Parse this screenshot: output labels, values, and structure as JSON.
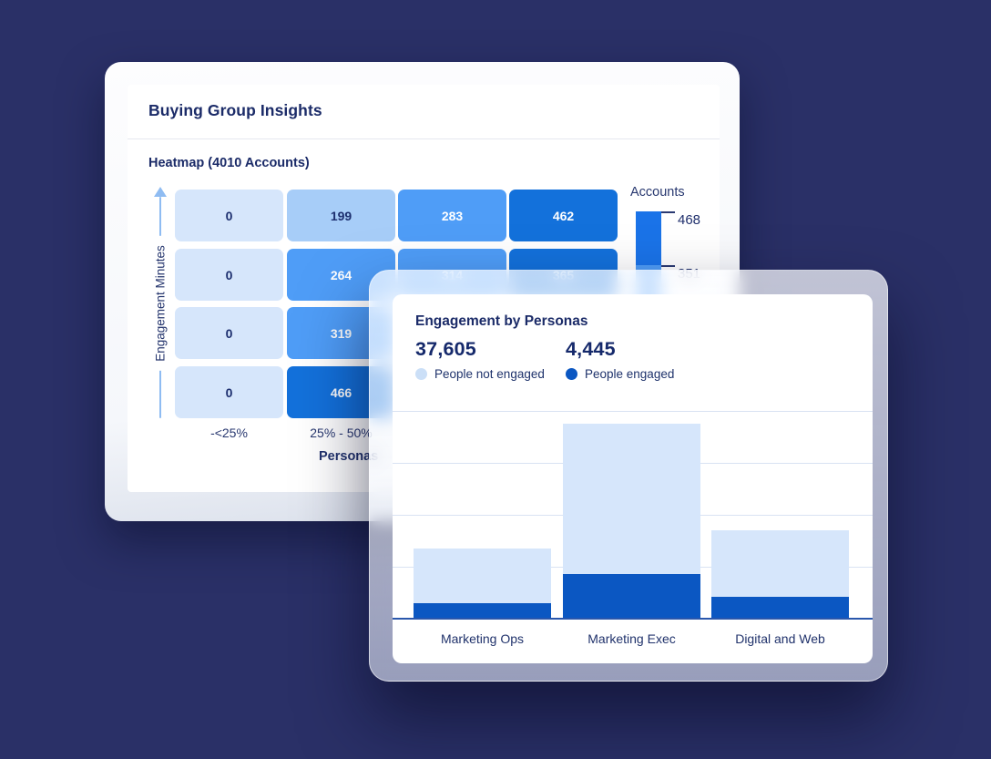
{
  "background_color": "#2A3067",
  "back_card": {
    "title": "Buying Group Insights",
    "heatmap_title": "Heatmap (4010 Accounts)",
    "y_axis_label": "Engagement Minutes",
    "x_axis_label": "Personas",
    "x_tick_labels": [
      "-<25%",
      "25% - 50%"
    ],
    "legend_title": "Accounts"
  },
  "front_card": {
    "title": "Engagement by Personas",
    "stats": [
      {
        "value": "37,605",
        "label": "People not engaged",
        "dot_color": "#CBDFF7"
      },
      {
        "value": "4,445",
        "label": "People engaged",
        "dot_color": "#0B57C2"
      }
    ]
  },
  "palette": {
    "l0": {
      "bg": "#D6E6FB",
      "text": "#1C2E6E"
    },
    "l1": {
      "bg": "#A7CDF8",
      "text": "#1C2E6E"
    },
    "l2": {
      "bg": "#4F9DF7",
      "text": "#FFFFFF"
    },
    "l3": {
      "bg": "#1371DB",
      "text": "#FFFFFF"
    }
  },
  "chart_data": [
    {
      "type": "heatmap",
      "title": "Heatmap (4010 Accounts)",
      "xlabel": "Personas",
      "ylabel": "Engagement Minutes",
      "x_tick_labels_visible": [
        "-<25%",
        "25% - 50%"
      ],
      "rows_top_to_bottom": [
        [
          {
            "value": "0",
            "level": "l0"
          },
          {
            "value": "199",
            "level": "l1"
          },
          {
            "value": "283",
            "level": "l2"
          },
          {
            "value": "462",
            "level": "l3"
          }
        ],
        [
          {
            "value": "0",
            "level": "l0"
          },
          {
            "value": "264",
            "level": "l2"
          },
          {
            "value": "314",
            "level": "l2"
          },
          {
            "value": "365",
            "level": "l3"
          }
        ],
        [
          {
            "value": "0",
            "level": "l0"
          },
          {
            "value": "319",
            "level": "l2"
          }
        ],
        [
          {
            "value": "0",
            "level": "l0"
          },
          {
            "value": "466",
            "level": "l3"
          }
        ]
      ],
      "colorbar": {
        "title": "Accounts",
        "ticks": [
          {
            "label": "468",
            "segment_color": "#1A73E8"
          },
          {
            "label": "351",
            "segment_color": "#4F9DF7"
          }
        ]
      }
    },
    {
      "type": "stacked-bar",
      "title": "Engagement by Personas",
      "categories": [
        "Marketing Ops",
        "Marketing Exec",
        "Digital and Web"
      ],
      "series": [
        {
          "name": "People engaged",
          "color": "#0B57C2",
          "values_pct_of_plot_height": [
            7,
            21,
            10
          ]
        },
        {
          "name": "People not engaged",
          "color": "#D6E6FB",
          "values_pct_of_plot_height": [
            26,
            72,
            32
          ]
        }
      ],
      "totals": {
        "people_not_engaged": "37,605",
        "people_engaged": "4,445"
      },
      "y_axis": "no numeric tick labels shown; segment heights estimated as % of plot area",
      "gridlines": "4 horizontal gridlines plus bottom axis line",
      "legend_position": "top, under headline stats"
    }
  ]
}
